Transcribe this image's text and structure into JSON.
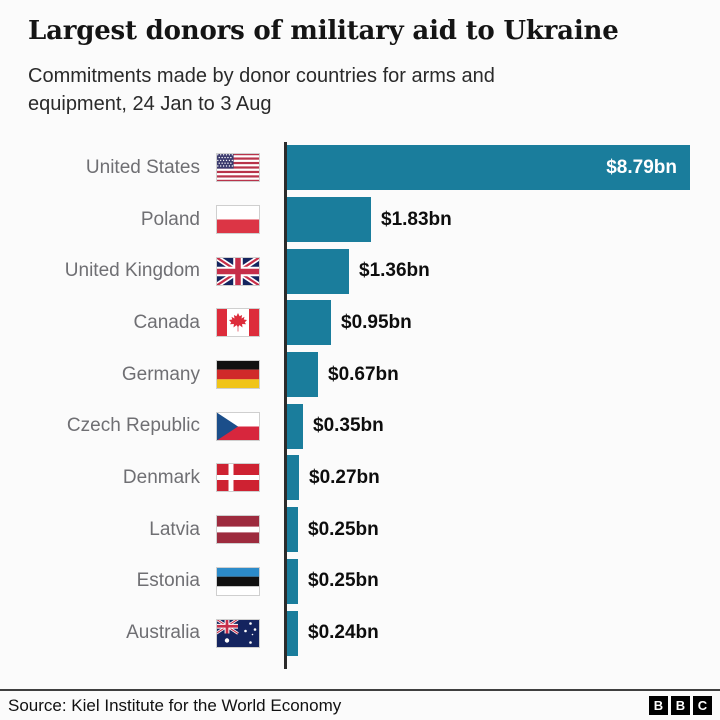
{
  "title": "Largest donors of military aid to Ukraine",
  "subtitle": {
    "line1": "Commitments made by donor countries for arms and",
    "line2": "equipment, 24 Jan to 3 Aug"
  },
  "chart_data": {
    "type": "bar",
    "orientation": "horizontal",
    "title": "Largest donors of military aid to Ukraine",
    "categories": [
      "United States",
      "Poland",
      "United Kingdom",
      "Canada",
      "Germany",
      "Czech Republic",
      "Denmark",
      "Latvia",
      "Estonia",
      "Australia"
    ],
    "values": [
      8.79,
      1.83,
      1.36,
      0.95,
      0.67,
      0.35,
      0.27,
      0.25,
      0.25,
      0.24
    ],
    "value_labels": [
      "$8.79bn",
      "$1.83bn",
      "$1.36bn",
      "$0.95bn",
      "$0.67bn",
      "$0.35bn",
      "$0.27bn",
      "$0.25bn",
      "$0.25bn",
      "$0.24bn"
    ],
    "flags": [
      "flag-united-states",
      "flag-poland",
      "flag-united-kingdom",
      "flag-canada",
      "flag-germany",
      "flag-czech-republic",
      "flag-denmark",
      "flag-latvia",
      "flag-estonia",
      "flag-australia"
    ],
    "unit": "USD billions",
    "xlim": [
      0,
      8.79
    ],
    "grid": false,
    "legend": false
  },
  "colors": {
    "bar": "#1A7D9C",
    "country_label": "#6F6F73",
    "axis": "#2B2B2B"
  },
  "footer": {
    "source": "Source: Kiel Institute for the World Economy",
    "logo_letters": [
      "B",
      "B",
      "C"
    ]
  }
}
